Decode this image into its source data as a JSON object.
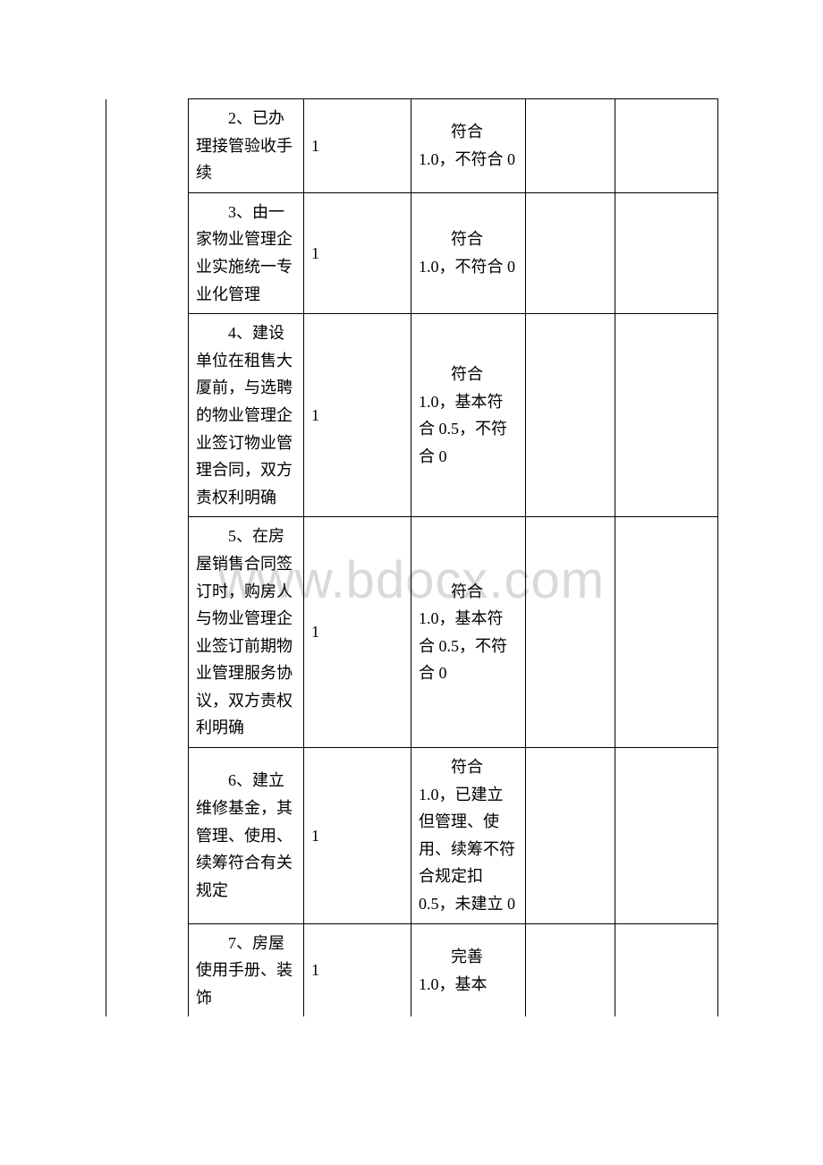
{
  "watermark": "www.bdocx.com",
  "table": {
    "columns": {
      "col1_width": 92,
      "col2_width": 129,
      "col3_width": 120,
      "col4_width": 128,
      "col5_width": 100,
      "col6_width": 115
    },
    "font_size": 18,
    "line_height": 1.7,
    "border_color": "#000000",
    "text_color": "#000000",
    "background_color": "#ffffff",
    "rows": [
      {
        "c1": "",
        "c2": "2、已办理接管验收手续",
        "c3": "1",
        "c4": "符合1.0，不符合 0",
        "c5": "",
        "c6": ""
      },
      {
        "c1": "",
        "c2": "3、由一家物业管理企业实施统一专业化管理",
        "c3": "1",
        "c4": "符合1.0，不符合 0",
        "c5": "",
        "c6": ""
      },
      {
        "c1": "",
        "c2": "4、建设单位在租售大厦前，与选聘的物业管理企业签订物业管理合同，双方责权利明确",
        "c3": "1",
        "c4": "符合1.0，基本符合 0.5，不符合 0",
        "c5": "",
        "c6": ""
      },
      {
        "c1": "",
        "c2": "5、在房屋销售合同签订时，购房人与物业管理企业签订前期物业管理服务协议，双方责权利明确",
        "c3": "1",
        "c4": "符合1.0，基本符合 0.5，不符合 0",
        "c5": "",
        "c6": ""
      },
      {
        "c1": "",
        "c2": "6、建立维修基金，其管理、使用、续筹符合有关规定",
        "c3": "1",
        "c4": "符合1.0，已建立但管理、使用、续筹不符合规定扣0.5，未建立 0",
        "c5": "",
        "c6": ""
      },
      {
        "c1": "",
        "c2": "7、房屋使用手册、装饰",
        "c3": "1",
        "c4": "完善1.0，基本",
        "c5": "",
        "c6": ""
      }
    ]
  }
}
